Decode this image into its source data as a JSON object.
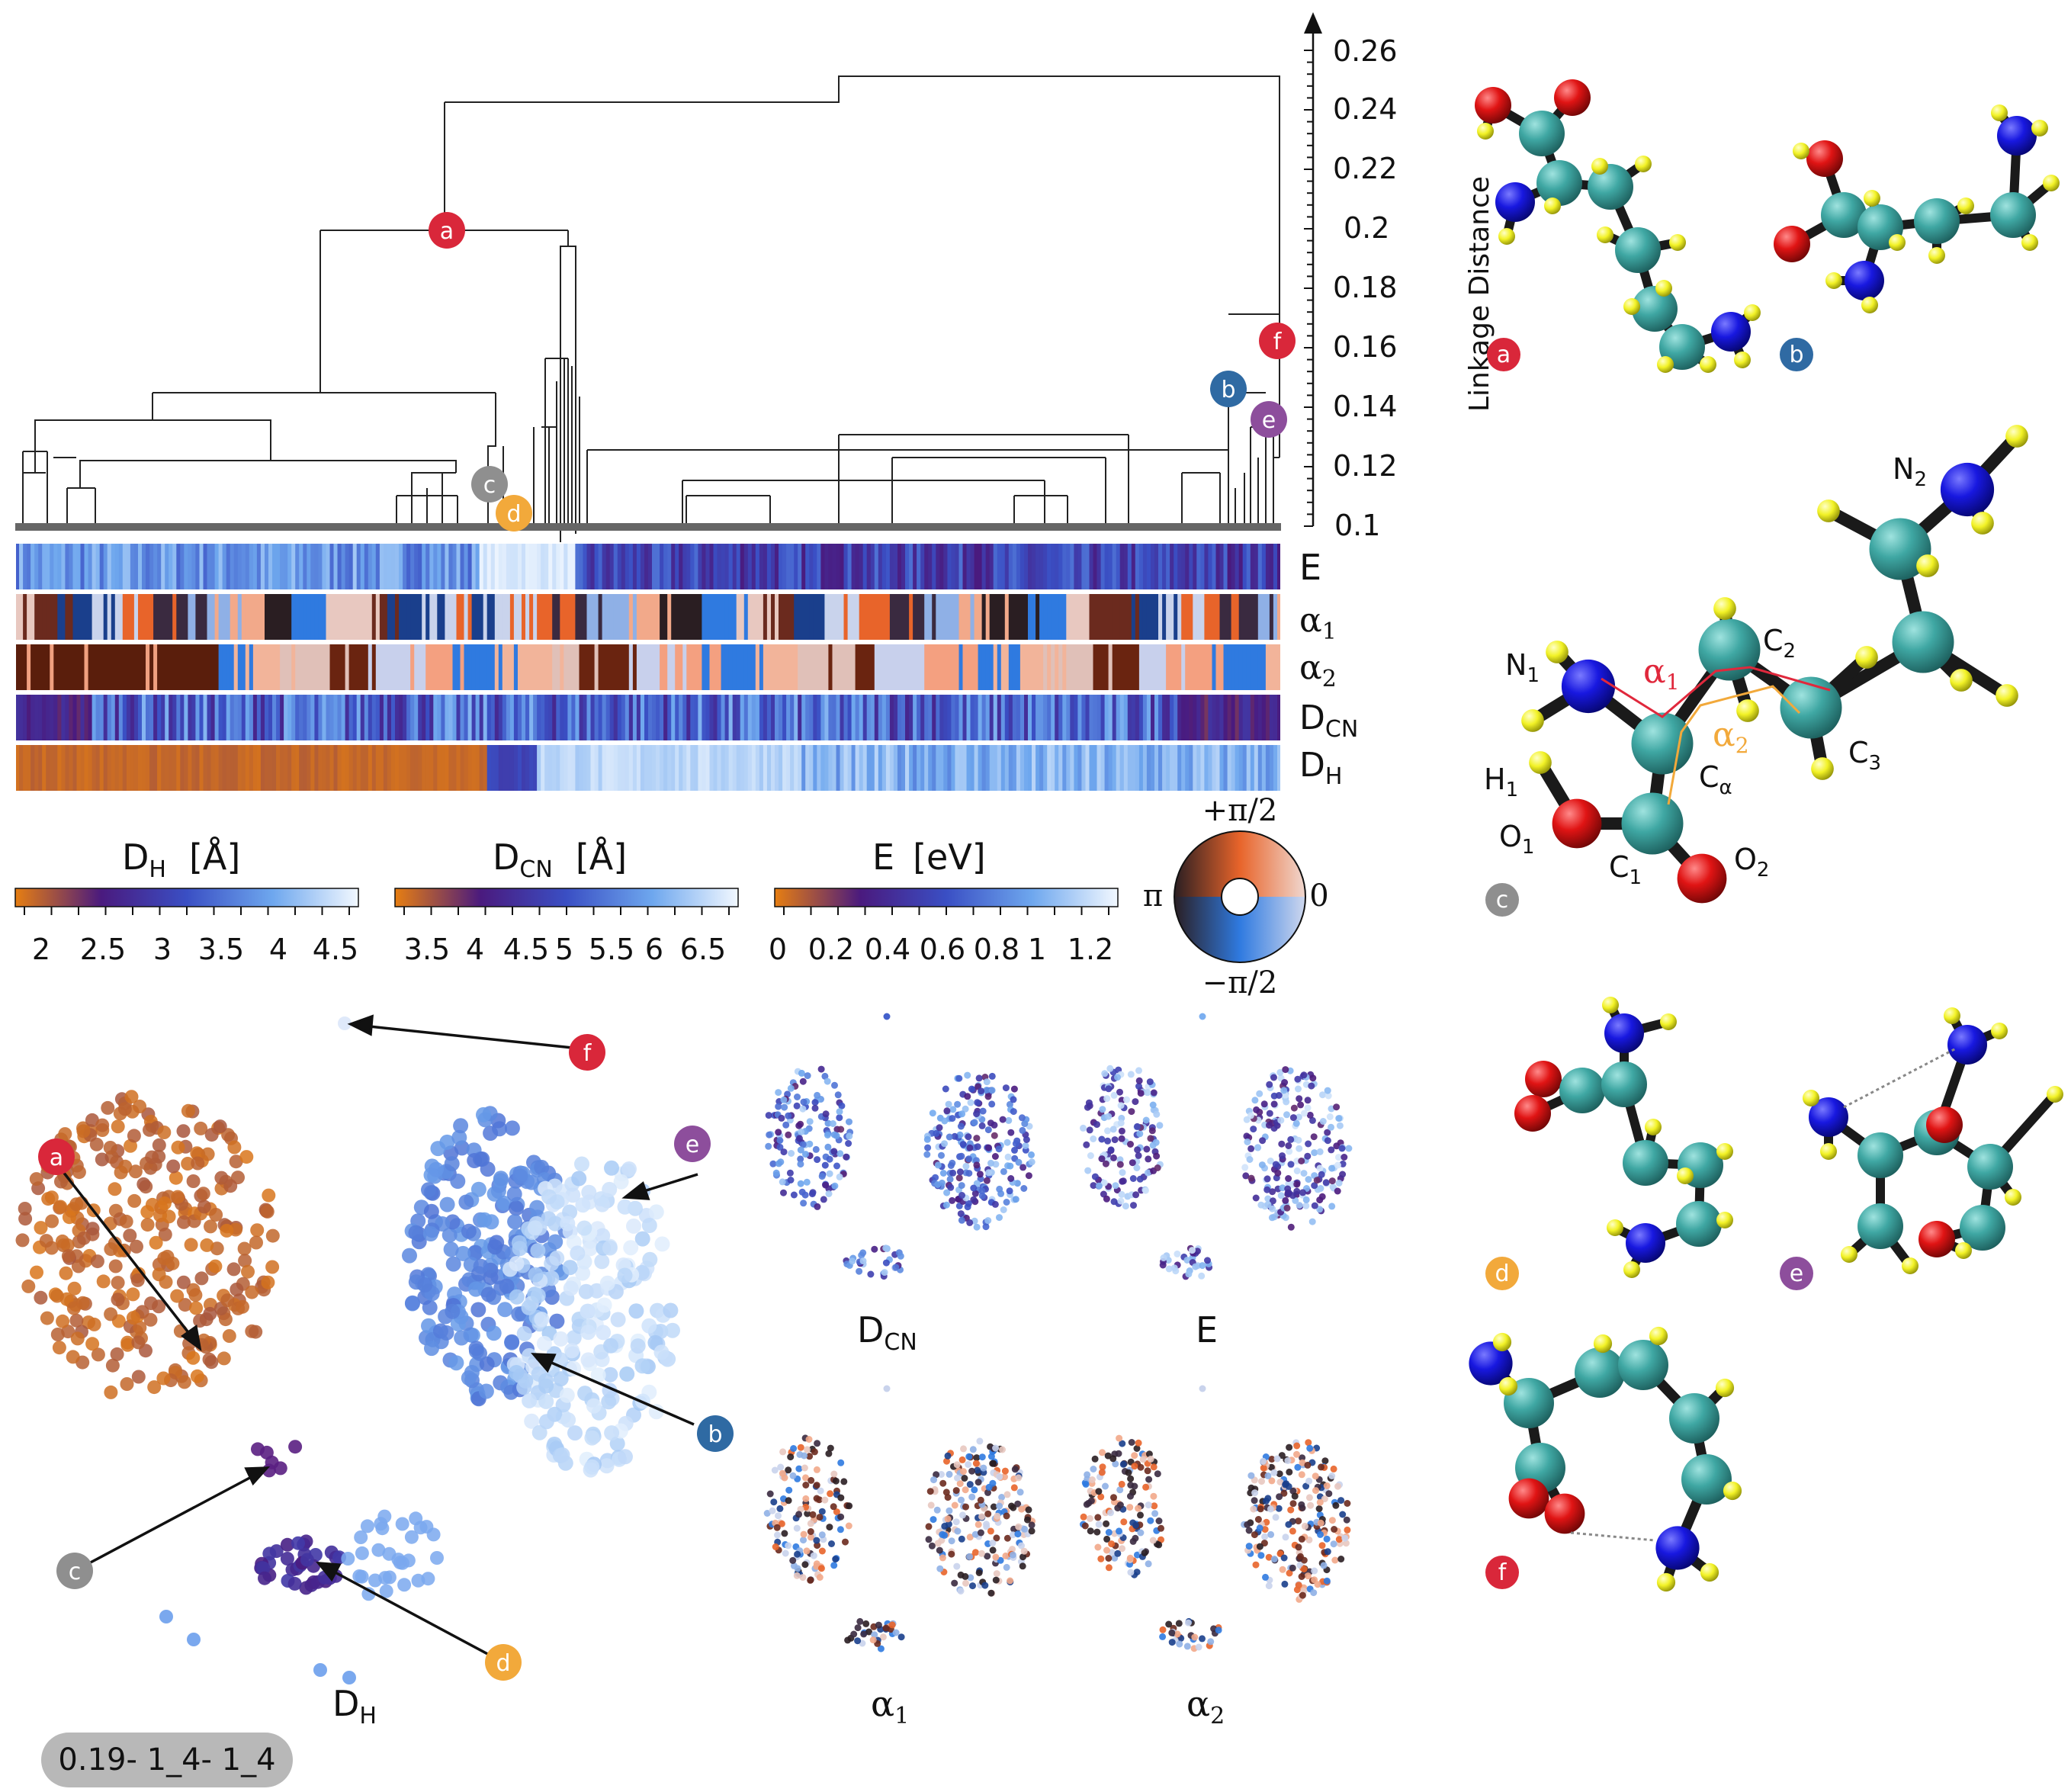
{
  "dendrogram": {
    "axis_label": "Linkage Distance",
    "ticks": [
      "0.1",
      "0.12",
      "0.14",
      "0.16",
      "0.18",
      "0.2",
      "0.22",
      "0.24",
      "0.26"
    ],
    "markers": {
      "a": "a",
      "b": "b",
      "c": "c",
      "d": "d",
      "e": "e",
      "f": "f"
    },
    "marker_colors": {
      "a": "#d9273a",
      "b": "#2f6aa3",
      "c": "#8f8f8f",
      "d": "#f2a93b",
      "e": "#8d4e9c",
      "f": "#d9273a"
    }
  },
  "strips": {
    "E": "E",
    "a1_main": "α",
    "a1_sub": "1",
    "a2_main": "α",
    "a2_sub": "2",
    "dcn_main": "D",
    "dcn_sub": "CN",
    "dh_main": "D",
    "dh_sub": "H"
  },
  "colorbars": {
    "dh": {
      "main": "D",
      "sub": "H",
      "unit": "[Å]",
      "ticks": [
        "2",
        "2.5",
        "3",
        "3.5",
        "4",
        "4.5"
      ]
    },
    "dcn": {
      "main": "D",
      "sub": "CN",
      "unit": "[Å]",
      "ticks": [
        "3.5",
        "4",
        "4.5",
        "5",
        "5.5",
        "6",
        "6.5"
      ]
    },
    "e": {
      "main": "E",
      "unit": "[eV]",
      "ticks": [
        "0",
        "0.2",
        "0.4",
        "0.6",
        "0.8",
        "1",
        "1.2"
      ]
    },
    "wheel": {
      "top": "+π/2",
      "bottom": "−π/2",
      "left": "π",
      "right": "0"
    }
  },
  "embedding": {
    "main_label_main": "D",
    "main_label_sub": "H",
    "panels": {
      "dcn_main": "D",
      "dcn_sub": "CN",
      "e": "E",
      "a1_main": "α",
      "a1_sub": "1",
      "a2_main": "α",
      "a2_sub": "2"
    }
  },
  "molecule_labels": {
    "N1": "N",
    "N1_sub": "1",
    "N2": "N",
    "N2_sub": "2",
    "C2": "C",
    "C2_sub": "2",
    "C3": "C",
    "C3_sub": "3",
    "Ca": "C",
    "Ca_sub": "α",
    "C1": "C",
    "C1_sub": "1",
    "H1": "H",
    "H1_sub": "1",
    "O1": "O",
    "O1_sub": "1",
    "O2": "O",
    "O2_sub": "2",
    "alpha1": "α",
    "alpha1_sub": "1",
    "alpha2": "α",
    "alpha2_sub": "2"
  },
  "badge": "0.19- 1_4- 1_4",
  "colors": {
    "carbon": "#3fa7a3",
    "nitrogen": "#1a1ae0",
    "oxygen": "#e01414",
    "hydrogen": "#f2f226",
    "orange": "#d76b12",
    "purple": "#4b1d82",
    "lightblue": "#d6ebfb",
    "blue": "#5b8fe0"
  }
}
